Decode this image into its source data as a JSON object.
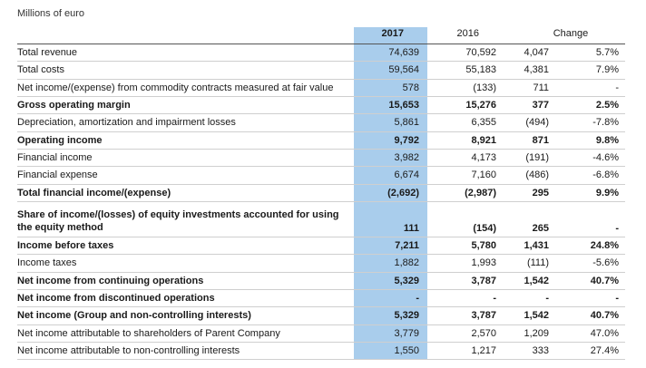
{
  "caption": "Millions of euro",
  "header": {
    "y2017": "2017",
    "y2016": "2016",
    "change": "Change"
  },
  "rows": [
    {
      "label": "Total revenue",
      "v2017": "74,639",
      "v2016": "70,592",
      "abs": "4,047",
      "pct": "5.7%",
      "bold": false
    },
    {
      "label": "Total costs",
      "v2017": "59,564",
      "v2016": "55,183",
      "abs": "4,381",
      "pct": "7.9%",
      "bold": false
    },
    {
      "label": "Net income/(expense) from commodity contracts measured at fair value",
      "v2017": "578",
      "v2016": "(133)",
      "abs": "711",
      "pct": "-",
      "bold": false
    },
    {
      "label": "Gross operating margin",
      "v2017": "15,653",
      "v2016": "15,276",
      "abs": "377",
      "pct": "2.5%",
      "bold": true
    },
    {
      "label": "Depreciation, amortization and impairment losses",
      "v2017": "5,861",
      "v2016": "6,355",
      "abs": "(494)",
      "pct": "-7.8%",
      "bold": false
    },
    {
      "label": "Operating income",
      "v2017": "9,792",
      "v2016": "8,921",
      "abs": "871",
      "pct": "9.8%",
      "bold": true
    },
    {
      "label": "Financial income",
      "v2017": "3,982",
      "v2016": "4,173",
      "abs": "(191)",
      "pct": "-4.6%",
      "bold": false
    },
    {
      "label": "Financial expense",
      "v2017": "6,674",
      "v2016": "7,160",
      "abs": "(486)",
      "pct": "-6.8%",
      "bold": false
    },
    {
      "label": "Total financial income/(expense)",
      "v2017": "(2,692)",
      "v2016": "(2,987)",
      "abs": "295",
      "pct": "9.9%",
      "bold": true
    },
    {
      "label": "Share of income/(losses) of equity investments accounted for using the equity method",
      "v2017": "111",
      "v2016": "(154)",
      "abs": "265",
      "pct": "-",
      "bold": true
    },
    {
      "label": "Income before taxes",
      "v2017": "7,211",
      "v2016": "5,780",
      "abs": "1,431",
      "pct": "24.8%",
      "bold": true
    },
    {
      "label": "Income taxes",
      "v2017": "1,882",
      "v2016": "1,993",
      "abs": "(111)",
      "pct": "-5.6%",
      "bold": false
    },
    {
      "label": "Net income from continuing operations",
      "v2017": "5,329",
      "v2016": "3,787",
      "abs": "1,542",
      "pct": "40.7%",
      "bold": true
    },
    {
      "label": "Net income from discontinued operations",
      "v2017": "-",
      "v2016": "-",
      "abs": "-",
      "pct": "-",
      "bold": true
    },
    {
      "label": "Net income (Group and non-controlling interests)",
      "v2017": "5,329",
      "v2016": "3,787",
      "abs": "1,542",
      "pct": "40.7%",
      "bold": true
    },
    {
      "label": "Net income attributable to shareholders of Parent Company",
      "v2017": "3,779",
      "v2016": "2,570",
      "abs": "1,209",
      "pct": "47.0%",
      "bold": false
    },
    {
      "label": "Net income attributable to non-controlling interests",
      "v2017": "1,550",
      "v2016": "1,217",
      "abs": "333",
      "pct": "27.4%",
      "bold": false
    }
  ]
}
